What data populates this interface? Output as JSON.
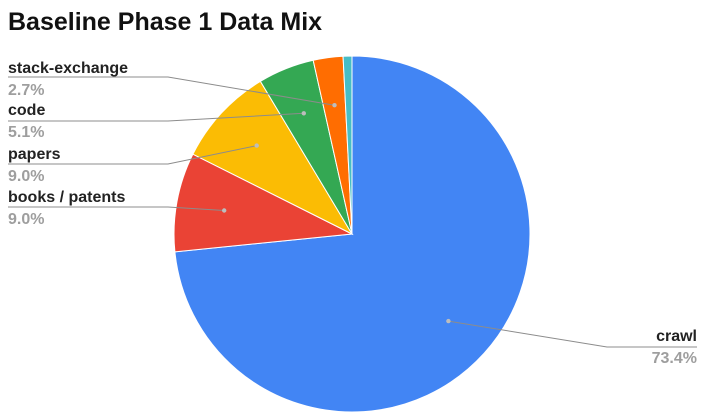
{
  "chart_data": {
    "type": "pie",
    "title": "Baseline Phase 1 Data Mix",
    "slices": [
      {
        "name": "crawl",
        "label": "73.4%",
        "value": 73.4,
        "color": "#4285F4"
      },
      {
        "name": "books / patents",
        "label": "9.0%",
        "value": 9.0,
        "color": "#EA4335"
      },
      {
        "name": "papers",
        "label": "9.0%",
        "value": 9.0,
        "color": "#FBBC04"
      },
      {
        "name": "code",
        "label": "5.1%",
        "value": 5.1,
        "color": "#34A853"
      },
      {
        "name": "stack-exchange",
        "label": "2.7%",
        "value": 2.7,
        "color": "#FF6D01"
      },
      {
        "name": "",
        "label": "",
        "value": 0.8,
        "color": "#46BDC6"
      }
    ],
    "legend": "none"
  }
}
